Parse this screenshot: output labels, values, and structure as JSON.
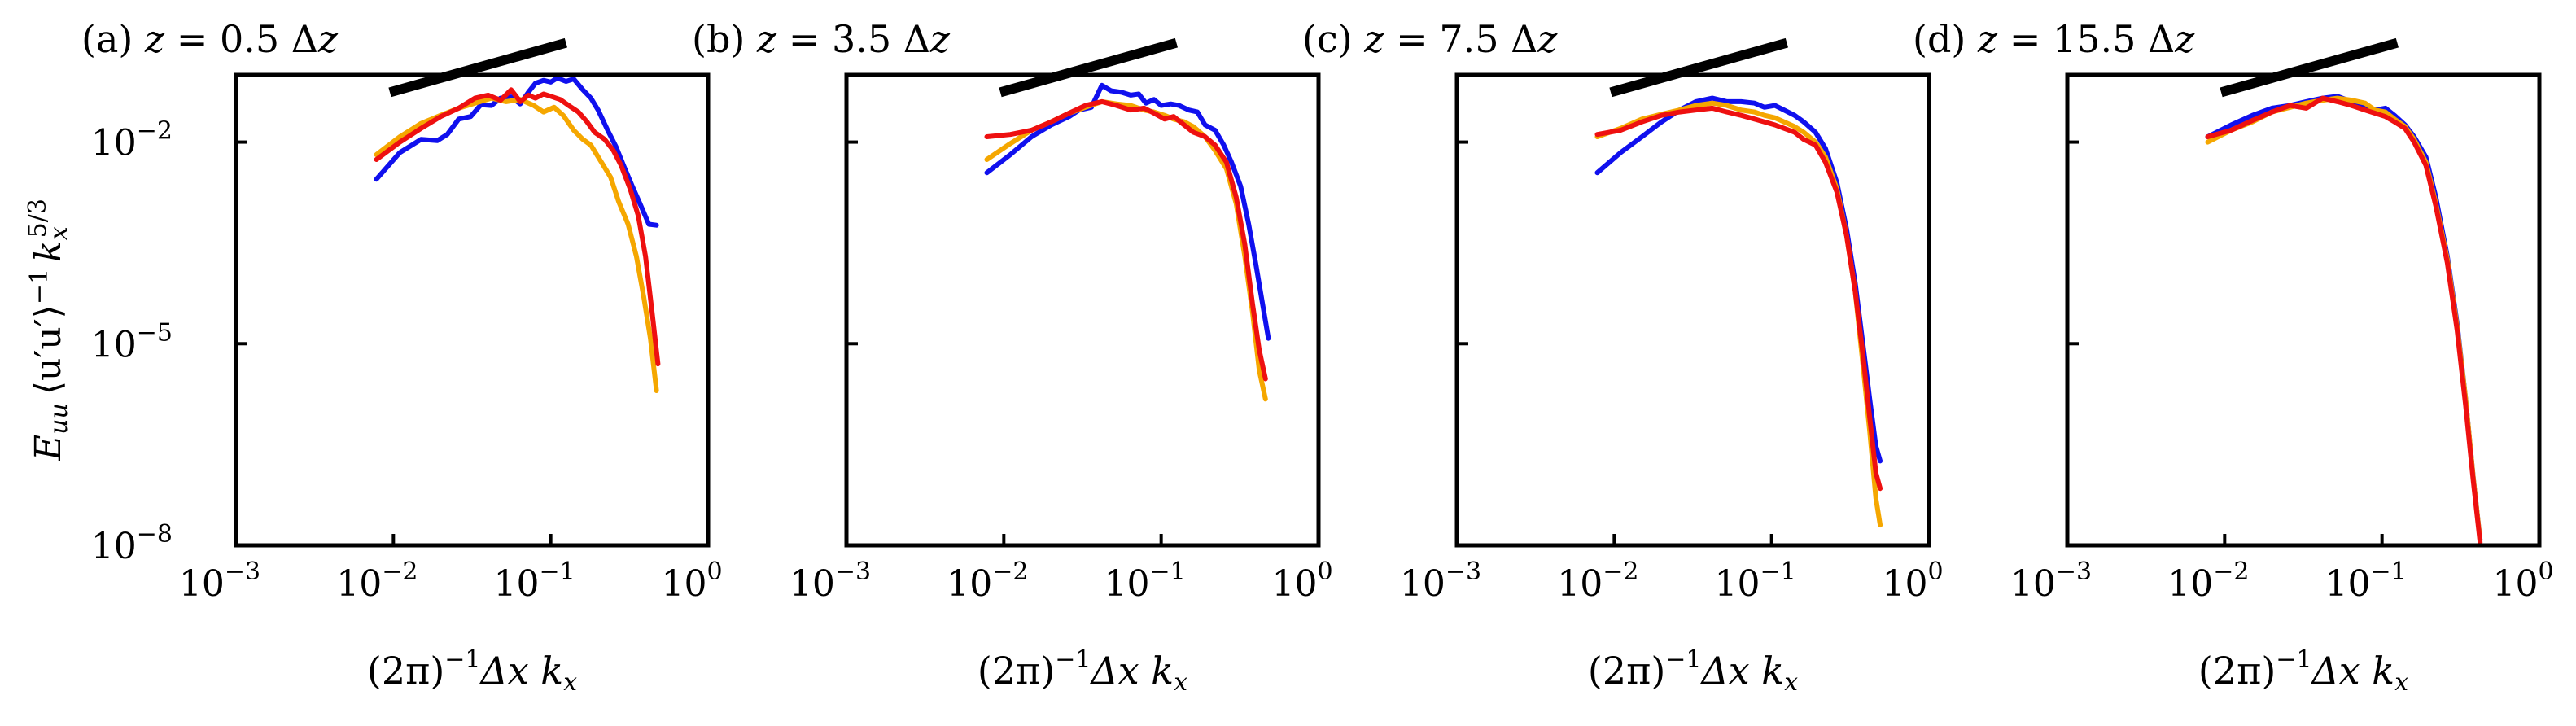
{
  "figure": {
    "ylabel": "E_uu ⟨u′u′⟩⁻¹ k_x^{5/3}",
    "ylabel_parts": {
      "E": "E",
      "E_sub": "uu",
      "bracket": "⟨u′u′⟩",
      "bracket_sup": "−1",
      "k": "k",
      "k_sub": "x",
      "k_sup": "5/3"
    },
    "xlabel_parts": {
      "open": "(2π)",
      "sup": "−1",
      "dx": "Δx k",
      "sub": "x"
    }
  },
  "chart_data": [
    {
      "type": "line",
      "panel": "a",
      "title": "(a) z = 0.5 Δz",
      "title_parts": {
        "pre": "(a) ",
        "z": "z",
        "mid": " = 0.5 Δ",
        "z2": "z"
      },
      "xscale": "log",
      "yscale": "log",
      "xlim": [
        0.001,
        1
      ],
      "ylim": [
        1e-08,
        0.1
      ],
      "xticks": [
        {
          "base": "10",
          "exp": "−3",
          "v": 0.001
        },
        {
          "base": "10",
          "exp": "−2",
          "v": 0.01
        },
        {
          "base": "10",
          "exp": "−1",
          "v": 0.1
        },
        {
          "base": "10",
          "exp": "0",
          "v": 1
        }
      ],
      "yticks": [
        {
          "base": "10",
          "exp": "−2",
          "v": 0.01
        },
        {
          "base": "10",
          "exp": "−5",
          "v": 1e-05
        },
        {
          "base": "10",
          "exp": "−8",
          "v": 1e-08
        }
      ],
      "reference_line": {
        "slope": "2/3",
        "x": [
          0.0095,
          0.125
        ],
        "y": [
          0.055,
          0.3
        ]
      },
      "series": [
        {
          "name": "blue",
          "color": "#1010ee",
          "x": [
            0.0078,
            0.011,
            0.015,
            0.019,
            0.022,
            0.026,
            0.031,
            0.036,
            0.042,
            0.048,
            0.056,
            0.064,
            0.072,
            0.08,
            0.09,
            0.1,
            0.11,
            0.125,
            0.14,
            0.16,
            0.18,
            0.2,
            0.23,
            0.26,
            0.29,
            0.33,
            0.37,
            0.42,
            0.47
          ],
          "y": [
            0.0028,
            0.007,
            0.011,
            0.0105,
            0.013,
            0.022,
            0.024,
            0.036,
            0.035,
            0.045,
            0.047,
            0.037,
            0.055,
            0.075,
            0.083,
            0.078,
            0.09,
            0.08,
            0.087,
            0.06,
            0.045,
            0.03,
            0.015,
            0.0085,
            0.0045,
            0.0022,
            0.0012,
            0.0006,
            0.00058
          ]
        },
        {
          "name": "orange",
          "color": "#f5a700",
          "x": [
            0.0078,
            0.011,
            0.015,
            0.02,
            0.026,
            0.033,
            0.042,
            0.052,
            0.064,
            0.078,
            0.09,
            0.105,
            0.12,
            0.14,
            0.16,
            0.18,
            0.21,
            0.24,
            0.27,
            0.31,
            0.35,
            0.39,
            0.43,
            0.47
          ],
          "y": [
            0.0065,
            0.012,
            0.019,
            0.025,
            0.032,
            0.038,
            0.045,
            0.04,
            0.043,
            0.035,
            0.028,
            0.033,
            0.025,
            0.015,
            0.011,
            0.009,
            0.005,
            0.003,
            0.0013,
            0.0006,
            0.0002,
            5e-05,
            1.2e-05,
            2e-06
          ]
        },
        {
          "name": "red",
          "color": "#ee1010",
          "x": [
            0.0078,
            0.011,
            0.015,
            0.02,
            0.026,
            0.033,
            0.04,
            0.048,
            0.056,
            0.064,
            0.072,
            0.08,
            0.09,
            0.1,
            0.115,
            0.13,
            0.15,
            0.17,
            0.19,
            0.22,
            0.25,
            0.28,
            0.32,
            0.36,
            0.4,
            0.44,
            0.48
          ],
          "y": [
            0.0055,
            0.01,
            0.016,
            0.024,
            0.032,
            0.045,
            0.05,
            0.042,
            0.06,
            0.04,
            0.05,
            0.045,
            0.052,
            0.048,
            0.043,
            0.035,
            0.028,
            0.02,
            0.014,
            0.011,
            0.0075,
            0.0045,
            0.002,
            0.0008,
            0.0002,
            3e-05,
            5e-06
          ]
        }
      ]
    },
    {
      "type": "line",
      "panel": "b",
      "title": "(b) z = 3.5 Δz",
      "title_parts": {
        "pre": "(b) ",
        "z": "z",
        "mid": " = 3.5 Δ",
        "z2": "z"
      },
      "xscale": "log",
      "yscale": "log",
      "xlim": [
        0.001,
        1
      ],
      "ylim": [
        1e-08,
        0.1
      ],
      "xticks": [
        {
          "base": "10",
          "exp": "−3",
          "v": 0.001
        },
        {
          "base": "10",
          "exp": "−2",
          "v": 0.01
        },
        {
          "base": "10",
          "exp": "−1",
          "v": 0.1
        },
        {
          "base": "10",
          "exp": "0",
          "v": 1
        }
      ],
      "yticks": [
        {
          "v": 0.01
        },
        {
          "v": 1e-05
        },
        {
          "v": 1e-08
        }
      ],
      "reference_line": {
        "slope": "2/3",
        "x": [
          0.0095,
          0.125
        ],
        "y": [
          0.055,
          0.3
        ]
      },
      "series": [
        {
          "name": "blue",
          "color": "#1010ee",
          "x": [
            0.0078,
            0.011,
            0.015,
            0.02,
            0.026,
            0.03,
            0.036,
            0.042,
            0.048,
            0.056,
            0.064,
            0.072,
            0.08,
            0.09,
            0.1,
            0.115,
            0.13,
            0.15,
            0.17,
            0.19,
            0.22,
            0.25,
            0.28,
            0.32,
            0.36,
            0.4,
            0.44,
            0.48
          ],
          "y": [
            0.0035,
            0.0065,
            0.012,
            0.018,
            0.024,
            0.03,
            0.033,
            0.07,
            0.058,
            0.055,
            0.05,
            0.052,
            0.038,
            0.043,
            0.035,
            0.037,
            0.035,
            0.03,
            0.028,
            0.018,
            0.015,
            0.009,
            0.005,
            0.0022,
            0.0006,
            0.00015,
            4e-05,
            1.2e-05
          ]
        },
        {
          "name": "orange",
          "color": "#f5a700",
          "x": [
            0.0078,
            0.011,
            0.015,
            0.02,
            0.026,
            0.033,
            0.042,
            0.052,
            0.064,
            0.078,
            0.09,
            0.105,
            0.12,
            0.14,
            0.16,
            0.19,
            0.22,
            0.26,
            0.3,
            0.34,
            0.38,
            0.42,
            0.46
          ],
          "y": [
            0.0055,
            0.0095,
            0.015,
            0.02,
            0.027,
            0.033,
            0.04,
            0.037,
            0.035,
            0.03,
            0.028,
            0.025,
            0.022,
            0.02,
            0.017,
            0.012,
            0.0075,
            0.004,
            0.0012,
            0.0002,
            3e-05,
            4e-06,
            1.5e-06
          ]
        },
        {
          "name": "red",
          "color": "#ee1010",
          "x": [
            0.0078,
            0.011,
            0.015,
            0.02,
            0.026,
            0.033,
            0.042,
            0.052,
            0.064,
            0.078,
            0.09,
            0.105,
            0.12,
            0.14,
            0.16,
            0.19,
            0.22,
            0.26,
            0.3,
            0.34,
            0.38,
            0.42,
            0.46
          ],
          "y": [
            0.012,
            0.013,
            0.015,
            0.02,
            0.027,
            0.035,
            0.04,
            0.035,
            0.03,
            0.032,
            0.027,
            0.022,
            0.024,
            0.018,
            0.014,
            0.012,
            0.009,
            0.005,
            0.0015,
            0.0003,
            4e-05,
            8e-06,
            3e-06
          ]
        }
      ]
    },
    {
      "type": "line",
      "panel": "c",
      "title": "(c) z = 7.5 Δz",
      "title_parts": {
        "pre": "(c) ",
        "z": "z",
        "mid": " = 7.5 Δ",
        "z2": "z"
      },
      "xscale": "log",
      "yscale": "log",
      "xlim": [
        0.001,
        1
      ],
      "ylim": [
        1e-08,
        0.1
      ],
      "xticks": [
        {
          "base": "10",
          "exp": "−3",
          "v": 0.001
        },
        {
          "base": "10",
          "exp": "−2",
          "v": 0.01
        },
        {
          "base": "10",
          "exp": "−1",
          "v": 0.1
        },
        {
          "base": "10",
          "exp": "0",
          "v": 1
        }
      ],
      "yticks": [
        {
          "v": 0.01
        },
        {
          "v": 1e-05
        },
        {
          "v": 1e-08
        }
      ],
      "reference_line": {
        "slope": "2/3",
        "x": [
          0.0095,
          0.125
        ],
        "y": [
          0.055,
          0.3
        ]
      },
      "series": [
        {
          "name": "blue",
          "color": "#1010ee",
          "x": [
            0.0078,
            0.011,
            0.015,
            0.02,
            0.026,
            0.033,
            0.042,
            0.052,
            0.064,
            0.078,
            0.09,
            0.105,
            0.12,
            0.14,
            0.16,
            0.19,
            0.22,
            0.26,
            0.3,
            0.34,
            0.38,
            0.42,
            0.46,
            0.49
          ],
          "y": [
            0.0035,
            0.007,
            0.012,
            0.02,
            0.03,
            0.04,
            0.045,
            0.04,
            0.04,
            0.038,
            0.033,
            0.035,
            0.03,
            0.025,
            0.02,
            0.014,
            0.008,
            0.0025,
            0.0005,
            8e-05,
            1e-05,
            1.5e-06,
            3e-07,
            1.8e-07
          ]
        },
        {
          "name": "orange",
          "color": "#f5a700",
          "x": [
            0.0078,
            0.011,
            0.015,
            0.02,
            0.026,
            0.033,
            0.042,
            0.052,
            0.064,
            0.078,
            0.09,
            0.105,
            0.12,
            0.14,
            0.16,
            0.19,
            0.22,
            0.26,
            0.3,
            0.34,
            0.38,
            0.42,
            0.46,
            0.49
          ],
          "y": [
            0.012,
            0.016,
            0.022,
            0.026,
            0.03,
            0.035,
            0.038,
            0.035,
            0.03,
            0.028,
            0.025,
            0.023,
            0.02,
            0.017,
            0.014,
            0.01,
            0.006,
            0.002,
            0.0004,
            6e-05,
            5e-06,
            5e-07,
            5e-08,
            2e-08
          ]
        },
        {
          "name": "red",
          "color": "#ee1010",
          "x": [
            0.0078,
            0.011,
            0.015,
            0.02,
            0.026,
            0.033,
            0.042,
            0.052,
            0.064,
            0.078,
            0.09,
            0.105,
            0.12,
            0.14,
            0.16,
            0.19,
            0.22,
            0.26,
            0.3,
            0.34,
            0.38,
            0.42,
            0.46,
            0.49
          ],
          "y": [
            0.013,
            0.015,
            0.02,
            0.025,
            0.028,
            0.03,
            0.032,
            0.028,
            0.025,
            0.022,
            0.02,
            0.018,
            0.016,
            0.014,
            0.011,
            0.009,
            0.005,
            0.0018,
            0.0004,
            6e-05,
            7e-06,
            8e-07,
            1.2e-07,
            7e-08
          ]
        }
      ]
    },
    {
      "type": "line",
      "panel": "d",
      "title": "(d) z = 15.5 Δz",
      "title_parts": {
        "pre": "(d) ",
        "z": "z",
        "mid": " = 15.5 Δ",
        "z2": "z"
      },
      "xscale": "log",
      "yscale": "log",
      "xlim": [
        0.001,
        1
      ],
      "ylim": [
        1e-08,
        0.1
      ],
      "xticks": [
        {
          "base": "10",
          "exp": "−3",
          "v": 0.001
        },
        {
          "base": "10",
          "exp": "−2",
          "v": 0.01
        },
        {
          "base": "10",
          "exp": "−1",
          "v": 0.1
        },
        {
          "base": "10",
          "exp": "0",
          "v": 1
        }
      ],
      "yticks": [
        {
          "v": 0.01
        },
        {
          "v": 1e-05
        },
        {
          "v": 1e-08
        }
      ],
      "reference_line": {
        "slope": "2/3",
        "x": [
          0.0095,
          0.125
        ],
        "y": [
          0.055,
          0.3
        ]
      },
      "series": [
        {
          "name": "blue",
          "color": "#1010ee",
          "x": [
            0.0078,
            0.011,
            0.015,
            0.02,
            0.026,
            0.033,
            0.042,
            0.052,
            0.064,
            0.078,
            0.09,
            0.105,
            0.12,
            0.14,
            0.16,
            0.19,
            0.22,
            0.26,
            0.3,
            0.34,
            0.38,
            0.42
          ],
          "y": [
            0.012,
            0.018,
            0.025,
            0.032,
            0.035,
            0.04,
            0.045,
            0.048,
            0.04,
            0.035,
            0.03,
            0.032,
            0.025,
            0.018,
            0.012,
            0.006,
            0.0015,
            0.0002,
            2e-05,
            1.5e-06,
            1e-07,
            1.2e-08
          ]
        },
        {
          "name": "orange",
          "color": "#f5a700",
          "x": [
            0.0078,
            0.011,
            0.015,
            0.02,
            0.026,
            0.033,
            0.042,
            0.052,
            0.064,
            0.078,
            0.09,
            0.105,
            0.12,
            0.14,
            0.16,
            0.19,
            0.22,
            0.26,
            0.3,
            0.34,
            0.38,
            0.42
          ],
          "y": [
            0.01,
            0.015,
            0.02,
            0.028,
            0.033,
            0.038,
            0.042,
            0.045,
            0.042,
            0.038,
            0.03,
            0.028,
            0.022,
            0.017,
            0.011,
            0.005,
            0.0012,
            0.00018,
            1.8e-05,
            1.5e-06,
            1e-07,
            1.2e-08
          ]
        },
        {
          "name": "red",
          "color": "#ee1010",
          "x": [
            0.0078,
            0.011,
            0.015,
            0.02,
            0.026,
            0.033,
            0.042,
            0.052,
            0.064,
            0.078,
            0.09,
            0.105,
            0.12,
            0.14,
            0.16,
            0.19,
            0.22,
            0.26,
            0.3,
            0.34,
            0.38,
            0.42
          ],
          "y": [
            0.012,
            0.015,
            0.021,
            0.028,
            0.035,
            0.032,
            0.045,
            0.04,
            0.035,
            0.03,
            0.027,
            0.024,
            0.02,
            0.016,
            0.01,
            0.0045,
            0.0011,
            0.00016,
            1.6e-05,
            1.2e-06,
            9e-08,
            1.1e-08
          ]
        }
      ]
    }
  ]
}
